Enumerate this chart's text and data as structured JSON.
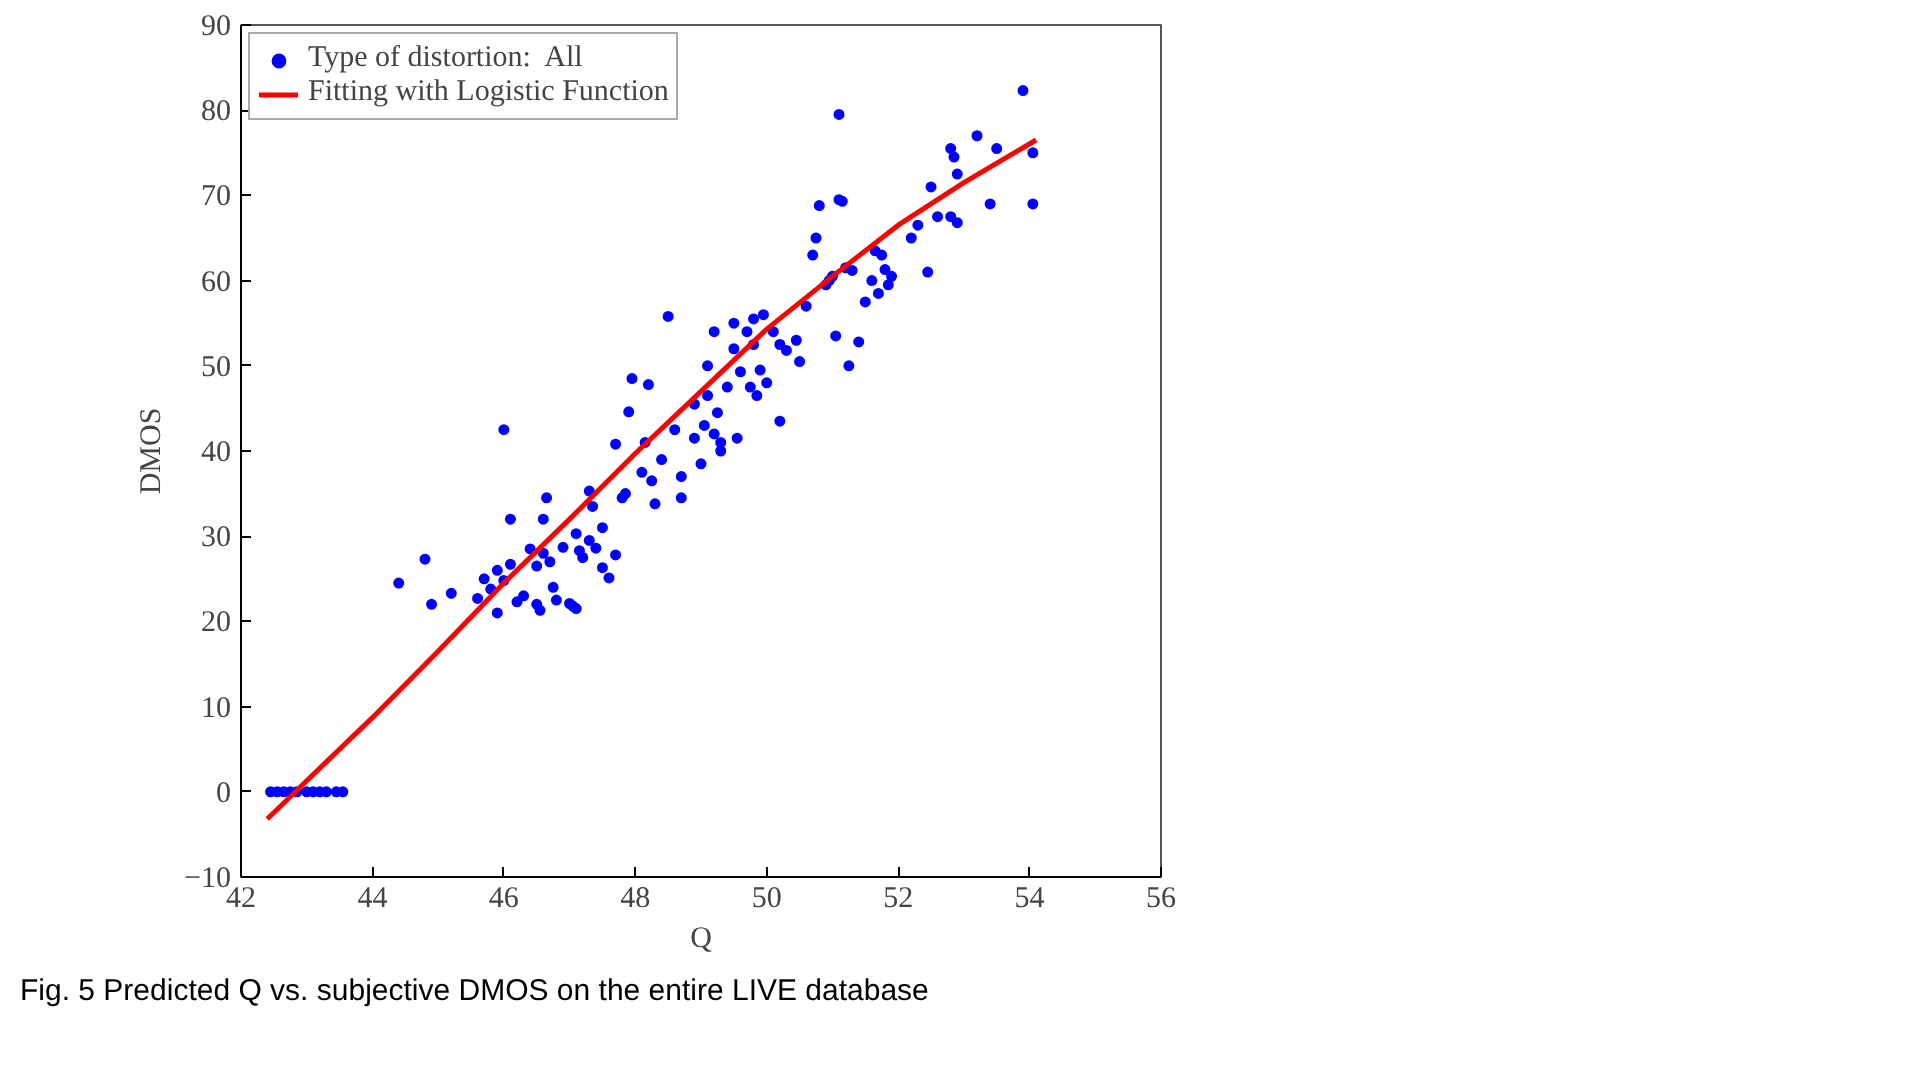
{
  "chart_data": {
    "type": "scatter",
    "xlabel": "Q",
    "ylabel": "DMOS",
    "xlim": [
      42,
      56
    ],
    "xticks": [
      42,
      44,
      46,
      48,
      50,
      52,
      54,
      56
    ],
    "ylim": [
      -10,
      90
    ],
    "yticks": [
      -10,
      0,
      10,
      20,
      30,
      40,
      50,
      60,
      70,
      80,
      90
    ],
    "grid": false,
    "legend": "top left",
    "annotations": [
      "Fig. 5 Predicted Q vs. subjective DMOS on the entire LIVE database"
    ],
    "series": [
      {
        "name": "Type of distortion:  All",
        "color": "#0000ff",
        "marker": "circle",
        "x": [
          42.45,
          42.55,
          42.65,
          42.75,
          42.85,
          43.0,
          43.1,
          43.2,
          43.3,
          43.45,
          43.55,
          44.4,
          44.8,
          44.9,
          45.2,
          45.6,
          45.7,
          45.8,
          45.9,
          45.9,
          46.0,
          46.1,
          46.0,
          46.1,
          46.2,
          46.3,
          46.4,
          46.5,
          46.5,
          46.55,
          46.6,
          46.6,
          46.65,
          46.7,
          46.75,
          46.8,
          46.9,
          47.0,
          47.05,
          47.1,
          47.1,
          47.15,
          47.2,
          47.3,
          47.3,
          47.35,
          47.4,
          47.5,
          47.5,
          47.6,
          47.7,
          47.7,
          47.85,
          47.8,
          47.9,
          47.95,
          48.1,
          48.15,
          48.2,
          48.25,
          48.3,
          48.4,
          48.5,
          48.6,
          48.7,
          48.7,
          48.9,
          48.9,
          49.0,
          49.05,
          49.1,
          49.1,
          49.2,
          49.2,
          49.25,
          49.3,
          49.3,
          49.4,
          49.5,
          49.5,
          49.55,
          49.6,
          49.7,
          49.75,
          49.8,
          49.8,
          49.85,
          49.9,
          49.95,
          50.0,
          50.1,
          50.2,
          50.2,
          50.3,
          50.45,
          50.5,
          50.6,
          50.7,
          50.75,
          50.8,
          50.9,
          50.95,
          51.0,
          51.05,
          51.1,
          51.1,
          51.15,
          51.2,
          51.25,
          51.3,
          51.4,
          51.5,
          51.6,
          51.65,
          51.7,
          51.75,
          51.8,
          51.85,
          51.9,
          52.2,
          52.3,
          52.45,
          52.5,
          52.6,
          52.8,
          52.8,
          52.85,
          52.9,
          52.9,
          53.2,
          53.5,
          53.4,
          53.9,
          54.05,
          54.05
        ],
        "values": [
          0,
          0,
          0,
          0,
          0,
          0,
          0,
          0,
          0,
          0,
          0,
          24.5,
          27.3,
          22,
          23.3,
          22.7,
          25,
          23.8,
          21,
          26,
          24.8,
          26.7,
          42.5,
          32,
          22.3,
          23,
          28.5,
          26.5,
          22,
          21.3,
          28,
          32,
          34.5,
          27,
          24,
          22.5,
          28.7,
          22.1,
          21.8,
          21.5,
          30.3,
          28.3,
          27.5,
          35.3,
          29.5,
          33.5,
          28.6,
          31,
          26.3,
          25.1,
          27.8,
          40.8,
          35,
          34.5,
          44.6,
          48.5,
          37.5,
          41,
          47.8,
          36.5,
          33.8,
          39,
          55.8,
          42.5,
          34.5,
          37,
          41.5,
          45.5,
          38.5,
          43,
          46.5,
          50,
          54,
          42,
          44.5,
          41,
          40,
          47.5,
          52,
          55,
          41.5,
          49.3,
          54,
          47.5,
          55.5,
          52.5,
          46.5,
          49.5,
          56,
          48,
          54,
          43.5,
          52.5,
          51.8,
          53,
          50.5,
          57,
          63,
          65,
          68.8,
          59.5,
          60,
          60.5,
          53.5,
          69.5,
          79.5,
          69.3,
          61.5,
          50,
          61.2,
          52.8,
          57.5,
          60,
          63.5,
          58.5,
          63,
          61.3,
          59.5,
          60.5,
          65,
          66.5,
          61,
          71,
          67.5,
          67.5,
          75.5,
          74.5,
          72.5,
          66.8,
          77,
          75.5,
          69,
          82.3,
          75,
          69
        ]
      },
      {
        "name": "Fitting with Logistic Function",
        "type": "line",
        "color": "#ff0000",
        "x": [
          42.4,
          43,
          44,
          45,
          46,
          47,
          48,
          49,
          50,
          51,
          52,
          53,
          54.1
        ],
        "values": [
          -3.2,
          1.3,
          8.7,
          16.5,
          24.5,
          32,
          39.7,
          47,
          54.3,
          60.5,
          66.5,
          71.5,
          76.5
        ]
      }
    ]
  }
}
